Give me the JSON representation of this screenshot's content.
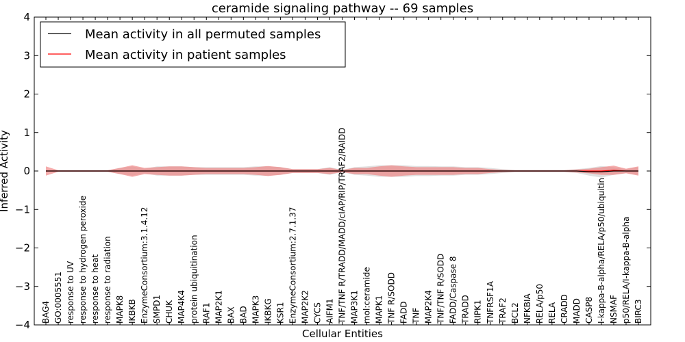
{
  "chart_data": {
    "type": "line",
    "title": "ceramide signaling pathway -- 69 samples",
    "xlabel": "Cellular Entities",
    "ylabel": "Inferred Activity",
    "ylim": [
      -4,
      4
    ],
    "yticks": [
      -4,
      -3,
      -2,
      -1,
      0,
      1,
      2,
      3,
      4
    ],
    "ytick_labels": [
      "−4",
      "−3",
      "−2",
      "−1",
      "0",
      "1",
      "2",
      "3",
      "4"
    ],
    "grid": false,
    "legend": {
      "position": "top-left",
      "entries": [
        {
          "label": "Mean activity in all permuted samples",
          "color": "#000000"
        },
        {
          "label": "Mean activity in patient samples",
          "color": "#ff0000"
        }
      ]
    },
    "categories": [
      "BAG4",
      "GO:0005551",
      "response to UV",
      "response to hydrogen peroxide",
      "response to heat",
      "response to radiation",
      "MAPK8",
      "IKBKB",
      "EnzymeConsortium:3.1.4.12",
      "SMPD1",
      "CHUK",
      "MAP4K4",
      "protein ubiquitination",
      "RAF1",
      "MAP2K1",
      "BAX",
      "BAD",
      "MAPK3",
      "IKBKG",
      "KSR1",
      "EnzymeConsortium:2.7.1.37",
      "MAP2K2",
      "CYCS",
      "AIFM1",
      "TNF/TNF R/TRADD/MADD/cIAP/RIP/TRAF2/RAIDD",
      "MAP3K1",
      "mol:ceramide",
      "MAPK1",
      "TNF R/SODD",
      "FADD",
      "TNF",
      "MAP2K4",
      "TNF/TNF R/SODD",
      "FADD/Caspase 8",
      "TRADD",
      "RIPK1",
      "TNFRSF1A",
      "TRAF2",
      "BCL2",
      "NFKBIA",
      "RELA/p50",
      "RELA",
      "CRADD",
      "MADD",
      "CASP8",
      "I-kappa-B-alpha/RELA/p50/ubiquitin",
      "NSMAF",
      "p50/RELA/I-kappa-B-alpha",
      "BIRC3"
    ],
    "series": [
      {
        "name": "Mean activity in all permuted samples",
        "color": "#000000",
        "values": [
          0,
          0,
          0,
          0,
          0,
          0,
          0,
          0,
          0,
          0,
          0,
          0,
          0,
          0,
          0,
          0,
          0,
          0,
          0,
          0,
          0,
          0,
          0,
          0,
          0,
          0,
          0,
          0,
          0,
          0,
          0,
          0,
          0,
          0,
          0,
          0,
          0,
          0,
          0,
          0,
          0,
          0,
          0,
          0,
          -0.02,
          -0.02,
          0,
          0,
          0
        ],
        "band_halfwidth": [
          0.02,
          0.02,
          0.02,
          0.02,
          0.02,
          0.02,
          0.08,
          0.12,
          0.06,
          0.12,
          0.12,
          0.12,
          0.1,
          0.1,
          0.1,
          0.1,
          0.1,
          0.12,
          0.12,
          0.1,
          0.05,
          0.05,
          0.05,
          0.1,
          0.03,
          0.1,
          0.12,
          0.15,
          0.15,
          0.15,
          0.13,
          0.13,
          0.12,
          0.12,
          0.1,
          0.1,
          0.08,
          0.05,
          0.03,
          0.03,
          0.03,
          0.03,
          0.03,
          0.05,
          0.1,
          0.15,
          0.1,
          0.05,
          0.1
        ],
        "band_color": "#cccccc"
      },
      {
        "name": "Mean activity in patient samples",
        "color": "#ff0000",
        "values": [
          0,
          0,
          0,
          0,
          0,
          0,
          0,
          0,
          0,
          0,
          0,
          0,
          0,
          0,
          0,
          0,
          0,
          0,
          0,
          0,
          0,
          0,
          0,
          0,
          0,
          0,
          0,
          0,
          0,
          0,
          0,
          0,
          0,
          0,
          0,
          0,
          0,
          0,
          0,
          0,
          0,
          0,
          0,
          0,
          0,
          0,
          0.02,
          0,
          0
        ],
        "band_halfwidth": [
          0.12,
          0.02,
          0.02,
          0.02,
          0.02,
          0.02,
          0.08,
          0.15,
          0.08,
          0.1,
          0.12,
          0.12,
          0.1,
          0.08,
          0.08,
          0.08,
          0.08,
          0.1,
          0.13,
          0.1,
          0.05,
          0.05,
          0.05,
          0.08,
          0.03,
          0.08,
          0.08,
          0.12,
          0.15,
          0.12,
          0.1,
          0.1,
          0.1,
          0.1,
          0.08,
          0.08,
          0.05,
          0.03,
          0.02,
          0.02,
          0.02,
          0.02,
          0.02,
          0.04,
          0.06,
          0.1,
          0.12,
          0.06,
          0.12
        ],
        "band_color": "#f08080"
      }
    ]
  }
}
